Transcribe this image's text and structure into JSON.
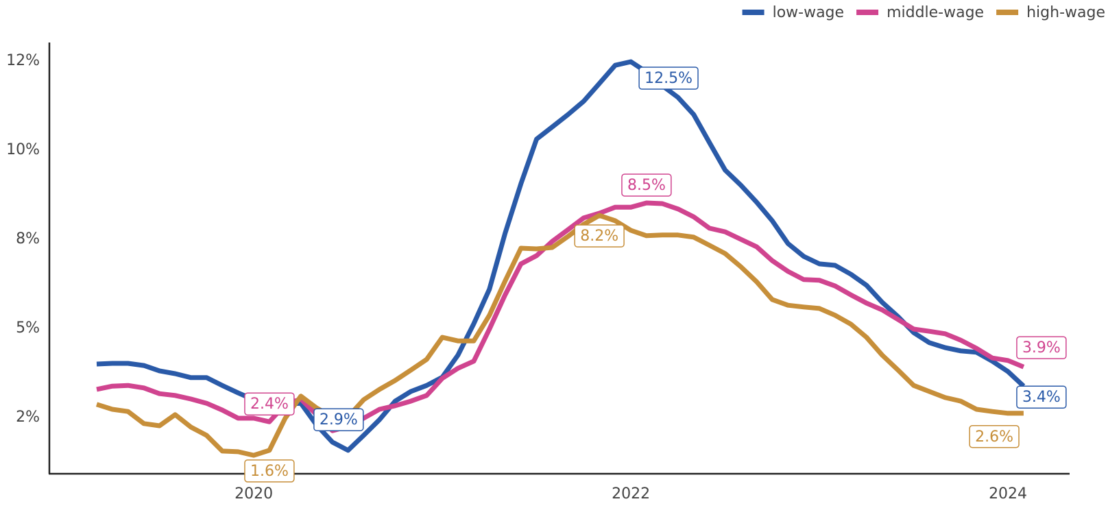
{
  "chart_data": {
    "type": "line",
    "x": [
      2019.167,
      2019.25,
      2019.333,
      2019.417,
      2019.5,
      2019.583,
      2019.667,
      2019.75,
      2019.833,
      2019.917,
      2020,
      2020.083,
      2020.167,
      2020.25,
      2020.333,
      2020.417,
      2020.5,
      2020.583,
      2020.667,
      2020.75,
      2020.833,
      2020.917,
      2021,
      2021.083,
      2021.167,
      2021.25,
      2021.333,
      2021.417,
      2021.5,
      2021.583,
      2021.667,
      2021.75,
      2021.833,
      2021.917,
      2022,
      2022.083,
      2022.167,
      2022.25,
      2022.333,
      2022.417,
      2022.5,
      2022.583,
      2022.667,
      2022.75,
      2022.833,
      2022.917,
      2023,
      2023.083,
      2023.167,
      2023.25,
      2023.333,
      2023.417,
      2023.5,
      2023.583,
      2023.667,
      2023.75,
      2023.833,
      2023.917,
      2024,
      2024.083
    ],
    "series": [
      {
        "name": "low-wage",
        "color": "#2a5aa8",
        "values": [
          4.0,
          4.02,
          4.02,
          3.96,
          3.81,
          3.73,
          3.62,
          3.62,
          3.4,
          3.19,
          3.0,
          2.88,
          2.88,
          2.9,
          2.29,
          1.81,
          1.58,
          2.0,
          2.44,
          2.96,
          3.23,
          3.4,
          3.63,
          4.25,
          5.13,
          6.1,
          7.67,
          9.06,
          10.31,
          10.65,
          11.0,
          11.37,
          11.87,
          12.38,
          12.48,
          12.19,
          11.81,
          11.48,
          11.0,
          10.21,
          9.44,
          9.02,
          8.54,
          8.02,
          7.38,
          7.02,
          6.81,
          6.77,
          6.52,
          6.21,
          5.73,
          5.33,
          4.88,
          4.6,
          4.46,
          4.37,
          4.33,
          4.08,
          3.79,
          3.38
        ],
        "value_labels": [
          null,
          null,
          null,
          null,
          null,
          null,
          null,
          null,
          null,
          null,
          null,
          null,
          null,
          "2.9%",
          null,
          null,
          null,
          null,
          null,
          null,
          null,
          null,
          null,
          null,
          null,
          null,
          null,
          null,
          null,
          null,
          null,
          null,
          null,
          null,
          "12.5%",
          null,
          null,
          null,
          null,
          null,
          null,
          null,
          null,
          null,
          null,
          null,
          null,
          null,
          null,
          null,
          null,
          null,
          null,
          null,
          null,
          null,
          null,
          null,
          null,
          "3.4%"
        ]
      },
      {
        "name": "middle-wage",
        "color": "#d0448f",
        "values": [
          3.29,
          3.38,
          3.4,
          3.33,
          3.17,
          3.12,
          3.02,
          2.9,
          2.71,
          2.48,
          2.48,
          2.38,
          2.87,
          3.02,
          2.58,
          2.13,
          2.25,
          2.48,
          2.73,
          2.83,
          2.96,
          3.12,
          3.6,
          3.88,
          4.08,
          4.98,
          5.94,
          6.81,
          7.04,
          7.44,
          7.77,
          8.1,
          8.23,
          8.4,
          8.4,
          8.52,
          8.5,
          8.35,
          8.13,
          7.81,
          7.71,
          7.5,
          7.29,
          6.9,
          6.6,
          6.37,
          6.35,
          6.19,
          5.94,
          5.71,
          5.52,
          5.25,
          4.98,
          4.92,
          4.85,
          4.67,
          4.44,
          4.17,
          4.1,
          3.92
        ],
        "value_labels": [
          null,
          null,
          null,
          null,
          null,
          null,
          null,
          null,
          null,
          null,
          null,
          "2.4%",
          null,
          null,
          null,
          null,
          null,
          null,
          null,
          null,
          null,
          null,
          null,
          null,
          null,
          null,
          null,
          null,
          null,
          null,
          null,
          null,
          null,
          null,
          null,
          "8.5%",
          null,
          null,
          null,
          null,
          null,
          null,
          null,
          null,
          null,
          null,
          null,
          null,
          null,
          null,
          null,
          null,
          null,
          null,
          null,
          null,
          null,
          null,
          null,
          "3.9%"
        ]
      },
      {
        "name": "high-wage",
        "color": "#c78f3a",
        "values": [
          2.87,
          2.73,
          2.67,
          2.33,
          2.27,
          2.58,
          2.23,
          2.0,
          1.56,
          1.54,
          1.44,
          1.58,
          2.48,
          3.1,
          2.77,
          2.52,
          2.52,
          3.0,
          3.29,
          3.54,
          3.83,
          4.13,
          4.75,
          4.65,
          4.65,
          5.37,
          6.33,
          7.25,
          7.23,
          7.27,
          7.58,
          7.92,
          8.17,
          8.02,
          7.75,
          7.6,
          7.62,
          7.62,
          7.56,
          7.33,
          7.1,
          6.73,
          6.31,
          5.81,
          5.65,
          5.6,
          5.56,
          5.37,
          5.12,
          4.75,
          4.25,
          3.83,
          3.4,
          3.23,
          3.06,
          2.96,
          2.73,
          2.67,
          2.62,
          2.62
        ],
        "value_labels": [
          null,
          null,
          null,
          null,
          null,
          null,
          null,
          null,
          null,
          null,
          null,
          "1.6%",
          null,
          null,
          null,
          null,
          null,
          null,
          null,
          null,
          null,
          null,
          null,
          null,
          null,
          null,
          null,
          null,
          null,
          null,
          null,
          null,
          "8.2%",
          null,
          null,
          null,
          null,
          null,
          null,
          null,
          null,
          null,
          null,
          null,
          null,
          null,
          null,
          null,
          null,
          null,
          null,
          null,
          null,
          null,
          null,
          null,
          null,
          null,
          "2.6%",
          null
        ]
      }
    ],
    "xlim": [
      2018.916,
      2024.327
    ],
    "xticks": [
      2020,
      2022,
      2024
    ],
    "ylim": [
      0.923,
      13.019
    ],
    "yticks": [
      {
        "value": 2.5,
        "label": "2%"
      },
      {
        "value": 5,
        "label": "5%"
      },
      {
        "value": 7.5,
        "label": "8%"
      },
      {
        "value": 10,
        "label": "10%"
      },
      {
        "value": 12.5,
        "label": "12%"
      }
    ],
    "grid": false,
    "legend": "top-right"
  }
}
